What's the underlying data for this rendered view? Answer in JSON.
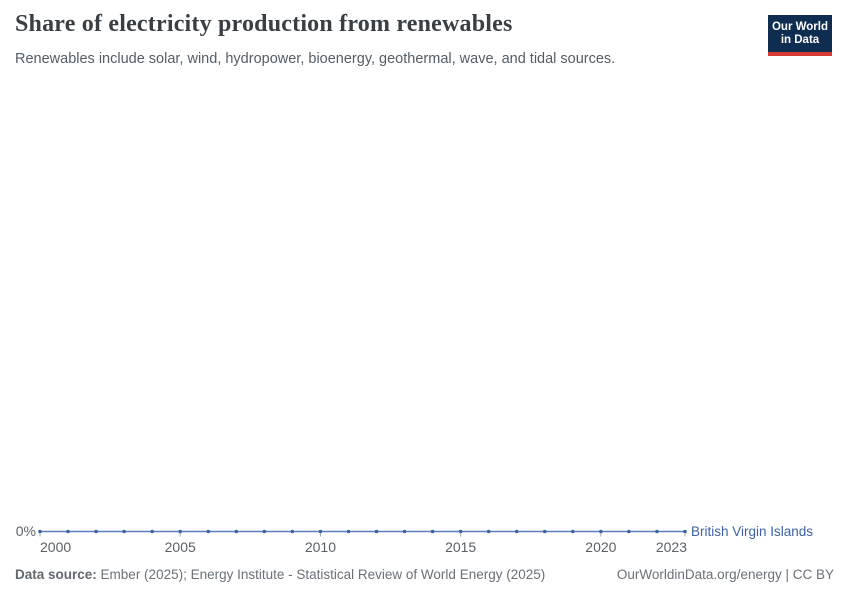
{
  "header": {
    "title": "Share of electricity production from renewables",
    "subtitle": "Renewables include solar, wind, hydropower, bioenergy, geothermal, wave, and tidal sources.",
    "logo": {
      "line1": "Our World",
      "line2": "in Data",
      "bg_color": "#0f2d51",
      "bar_color": "#d73c34"
    }
  },
  "chart_data": {
    "type": "line",
    "title": "Share of electricity production from renewables",
    "x": [
      2000,
      2001,
      2002,
      2003,
      2004,
      2005,
      2006,
      2007,
      2008,
      2009,
      2010,
      2011,
      2012,
      2013,
      2014,
      2015,
      2016,
      2017,
      2018,
      2019,
      2020,
      2021,
      2022,
      2023
    ],
    "series": [
      {
        "name": "British Virgin Islands",
        "color": "#3d62a5",
        "line_color": "#5b7fc0",
        "values": [
          0,
          0,
          0,
          0,
          0,
          0,
          0,
          0,
          0,
          0,
          0,
          0,
          0,
          0,
          0,
          0,
          0,
          0,
          0,
          0,
          0,
          0,
          0,
          0
        ]
      }
    ],
    "x_tick_labels": [
      "2000",
      "2005",
      "2010",
      "2015",
      "2020",
      "2023"
    ],
    "y_tick_labels": [
      "0%"
    ],
    "ylim": [
      0,
      100
    ],
    "xlabel": "",
    "ylabel": "",
    "grid": false,
    "legend_position": "end-of-line"
  },
  "footer": {
    "datasource_label": "Data source:",
    "datasource_text": "Ember (2025); Energy Institute - Statistical Review of World Energy (2025)",
    "credit": "OurWorldinData.org/energy | CC BY"
  },
  "colors": {
    "axis_text": "#5b6166",
    "tick": "#a4aab0",
    "title_text": "#3a3f44",
    "subtitle_text": "#535d66",
    "footer_text": "#6b7178"
  }
}
